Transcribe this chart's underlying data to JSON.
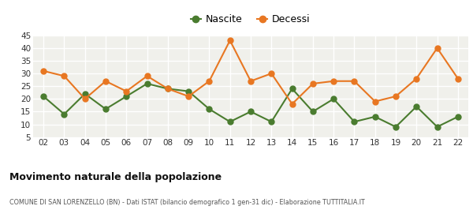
{
  "years": [
    "02",
    "03",
    "04",
    "05",
    "06",
    "07",
    "08",
    "09",
    "10",
    "11",
    "12",
    "13",
    "14",
    "15",
    "16",
    "17",
    "18",
    "19",
    "20",
    "21",
    "22"
  ],
  "nascite": [
    21,
    14,
    22,
    16,
    21,
    26,
    24,
    23,
    16,
    11,
    15,
    11,
    24,
    15,
    20,
    11,
    13,
    9,
    17,
    9,
    13
  ],
  "decessi": [
    31,
    29,
    20,
    27,
    23,
    29,
    24,
    21,
    27,
    43,
    27,
    30,
    18,
    26,
    27,
    27,
    19,
    21,
    28,
    40,
    28
  ],
  "nascite_color": "#4a7c2f",
  "decessi_color": "#e87722",
  "plot_bg_color": "#f0f0eb",
  "fig_bg_color": "#ffffff",
  "grid_color": "#ffffff",
  "ylim": [
    5,
    45
  ],
  "yticks": [
    5,
    10,
    15,
    20,
    25,
    30,
    35,
    40,
    45
  ],
  "title": "Movimento naturale della popolazione",
  "subtitle": "COMUNE DI SAN LORENZELLO (BN) - Dati ISTAT (bilancio demografico 1 gen-31 dic) - Elaborazione TUTTITALIA.IT",
  "legend_nascite": "Nascite",
  "legend_decessi": "Decessi",
  "marker_size": 5,
  "line_width": 1.5
}
